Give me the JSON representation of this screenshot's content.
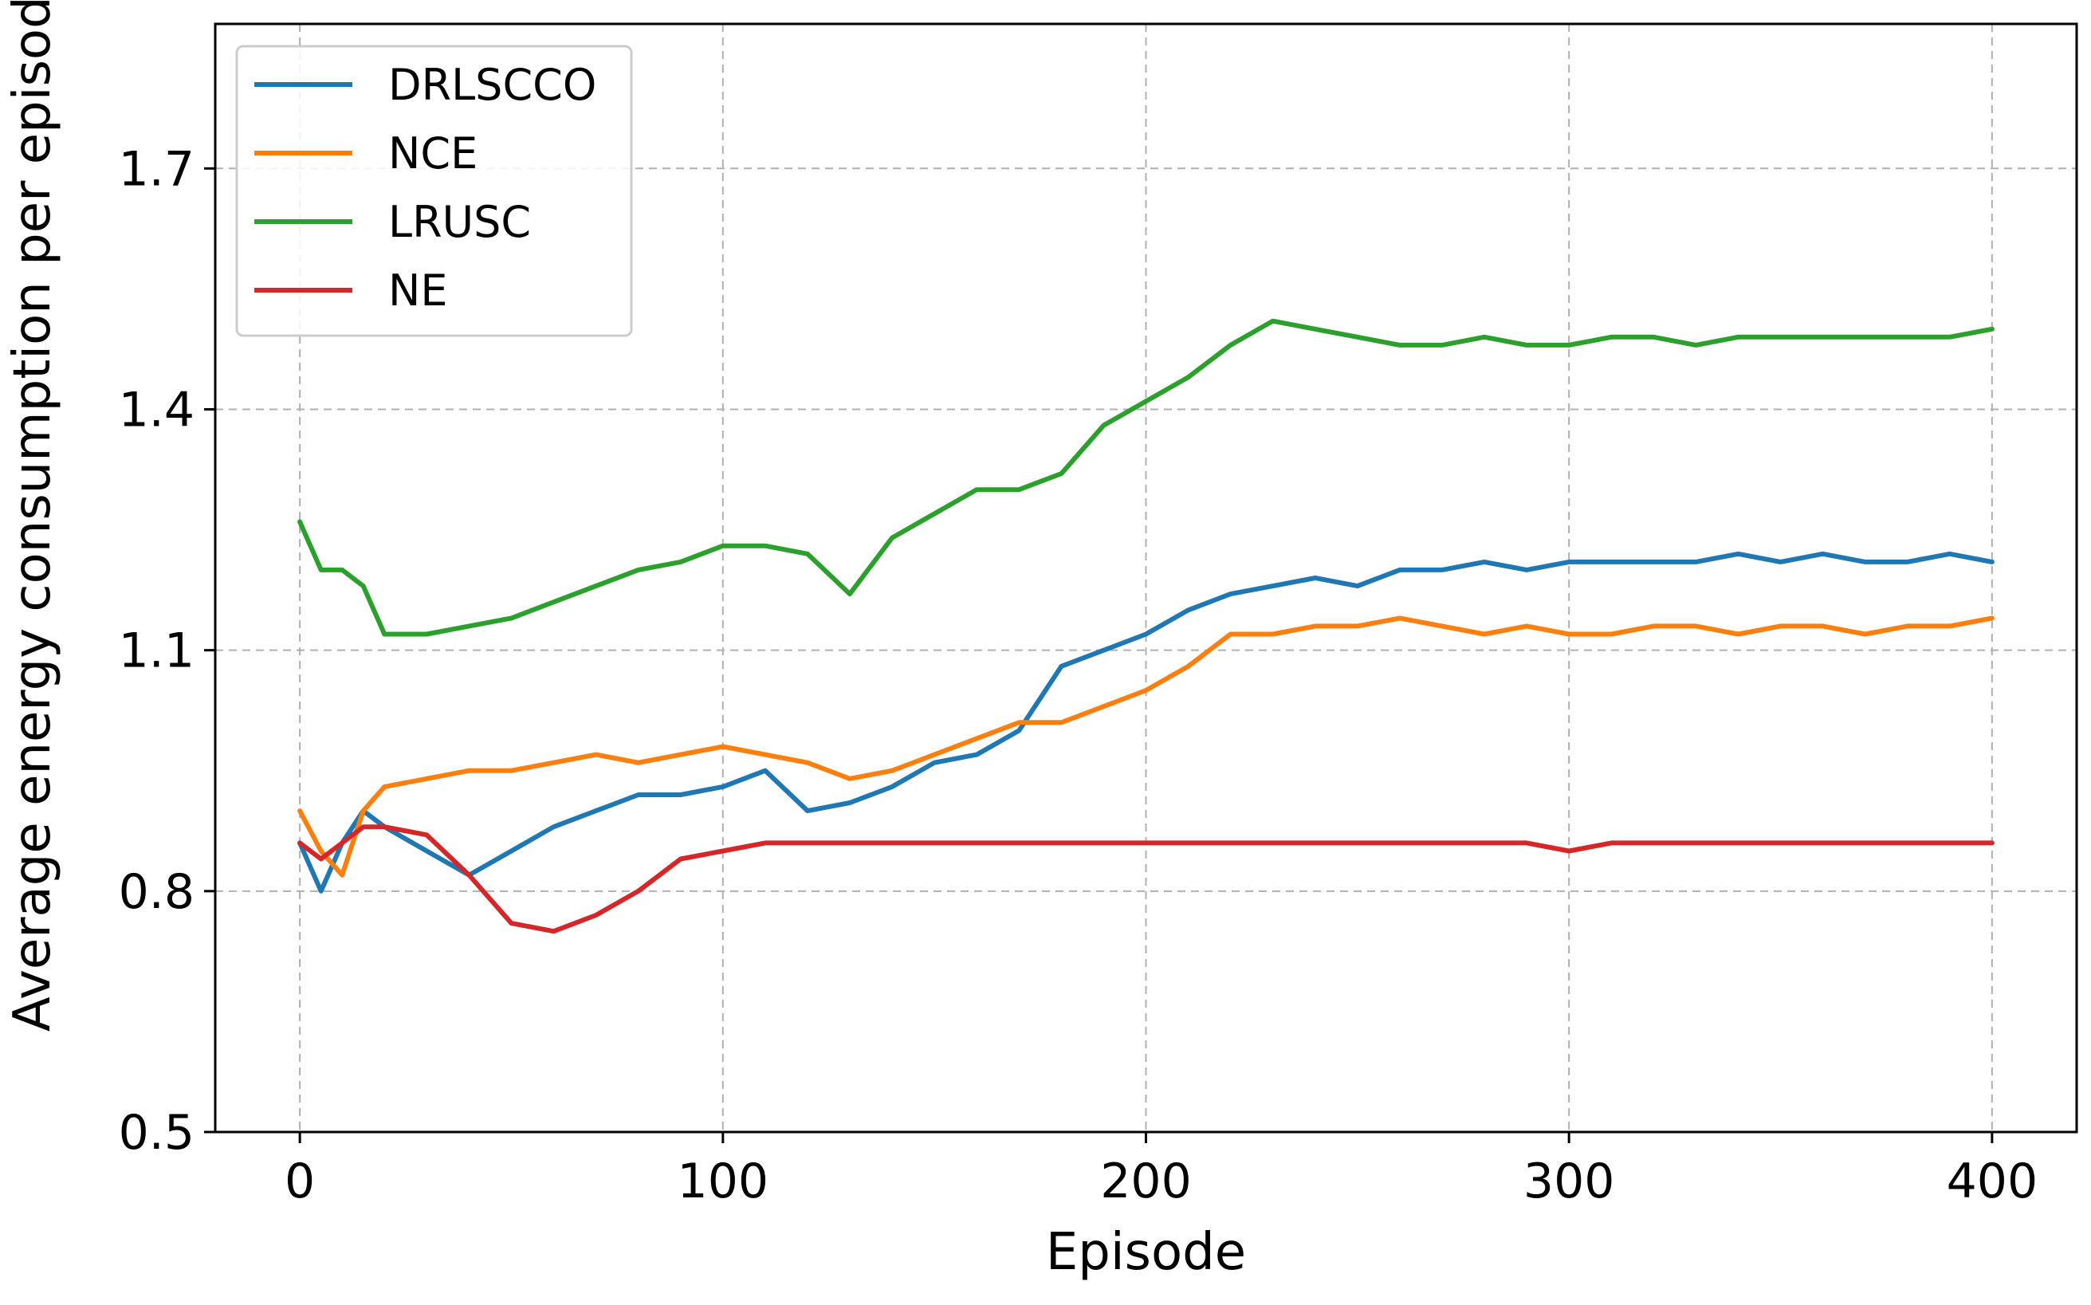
{
  "chart_data": {
    "type": "line",
    "title": "",
    "xlabel": "Episode",
    "ylabel": "Average energy consumption per episode",
    "xlim": [
      -20,
      420
    ],
    "ylim": [
      0.5,
      1.88
    ],
    "xticks": [
      0,
      100,
      200,
      300,
      400
    ],
    "yticks": [
      0.5,
      0.8,
      1.1,
      1.4,
      1.7
    ],
    "ytick_labels": [
      "0.5",
      "0.8",
      "1.1",
      "1.4",
      "1.7"
    ],
    "grid": true,
    "legend_position": "top-left",
    "series": [
      {
        "name": "DRLSCCO",
        "color": "#1f77b4",
        "x": [
          0,
          5,
          10,
          15,
          20,
          30,
          40,
          50,
          60,
          70,
          80,
          90,
          100,
          110,
          120,
          130,
          140,
          150,
          160,
          170,
          180,
          190,
          200,
          210,
          220,
          230,
          240,
          250,
          260,
          270,
          280,
          290,
          300,
          310,
          320,
          330,
          340,
          350,
          360,
          370,
          380,
          390,
          400
        ],
        "y": [
          0.86,
          0.8,
          0.86,
          0.9,
          0.88,
          0.85,
          0.82,
          0.85,
          0.88,
          0.9,
          0.92,
          0.92,
          0.93,
          0.95,
          0.9,
          0.91,
          0.93,
          0.96,
          0.97,
          1.0,
          1.08,
          1.1,
          1.12,
          1.15,
          1.17,
          1.18,
          1.19,
          1.18,
          1.2,
          1.2,
          1.21,
          1.2,
          1.21,
          1.21,
          1.21,
          1.21,
          1.22,
          1.21,
          1.22,
          1.21,
          1.21,
          1.22,
          1.21
        ]
      },
      {
        "name": "NCE",
        "color": "#ff7f0e",
        "x": [
          0,
          5,
          10,
          15,
          20,
          30,
          40,
          50,
          60,
          70,
          80,
          90,
          100,
          110,
          120,
          130,
          140,
          150,
          160,
          170,
          180,
          190,
          200,
          210,
          220,
          230,
          240,
          250,
          260,
          270,
          280,
          290,
          300,
          310,
          320,
          330,
          340,
          350,
          360,
          370,
          380,
          390,
          400
        ],
        "y": [
          0.9,
          0.85,
          0.82,
          0.9,
          0.93,
          0.94,
          0.95,
          0.95,
          0.96,
          0.97,
          0.96,
          0.97,
          0.98,
          0.97,
          0.96,
          0.94,
          0.95,
          0.97,
          0.99,
          1.01,
          1.01,
          1.03,
          1.05,
          1.08,
          1.12,
          1.12,
          1.13,
          1.13,
          1.14,
          1.13,
          1.12,
          1.13,
          1.12,
          1.12,
          1.13,
          1.13,
          1.12,
          1.13,
          1.13,
          1.12,
          1.13,
          1.13,
          1.14
        ]
      },
      {
        "name": "LRUSC",
        "color": "#2ca02c",
        "x": [
          0,
          5,
          10,
          15,
          20,
          30,
          40,
          50,
          60,
          70,
          80,
          90,
          100,
          110,
          120,
          130,
          140,
          150,
          160,
          170,
          180,
          190,
          200,
          210,
          220,
          230,
          240,
          250,
          260,
          270,
          280,
          290,
          300,
          310,
          320,
          330,
          340,
          350,
          360,
          370,
          380,
          390,
          400
        ],
        "y": [
          1.26,
          1.2,
          1.2,
          1.18,
          1.12,
          1.12,
          1.13,
          1.14,
          1.16,
          1.18,
          1.2,
          1.21,
          1.23,
          1.23,
          1.22,
          1.17,
          1.24,
          1.27,
          1.3,
          1.3,
          1.32,
          1.38,
          1.41,
          1.44,
          1.48,
          1.51,
          1.5,
          1.49,
          1.48,
          1.48,
          1.49,
          1.48,
          1.48,
          1.49,
          1.49,
          1.48,
          1.49,
          1.49,
          1.49,
          1.49,
          1.49,
          1.49,
          1.5
        ]
      },
      {
        "name": "NE",
        "color": "#d62728",
        "x": [
          0,
          5,
          10,
          15,
          20,
          30,
          40,
          50,
          60,
          70,
          80,
          90,
          100,
          110,
          120,
          130,
          140,
          150,
          160,
          170,
          180,
          190,
          200,
          210,
          220,
          230,
          240,
          250,
          260,
          270,
          280,
          290,
          300,
          310,
          320,
          330,
          340,
          350,
          360,
          370,
          380,
          390,
          400
        ],
        "y": [
          0.86,
          0.84,
          0.86,
          0.88,
          0.88,
          0.87,
          0.82,
          0.76,
          0.75,
          0.77,
          0.8,
          0.84,
          0.85,
          0.86,
          0.86,
          0.86,
          0.86,
          0.86,
          0.86,
          0.86,
          0.86,
          0.86,
          0.86,
          0.86,
          0.86,
          0.86,
          0.86,
          0.86,
          0.86,
          0.86,
          0.86,
          0.86,
          0.85,
          0.86,
          0.86,
          0.86,
          0.86,
          0.86,
          0.86,
          0.86,
          0.86,
          0.86,
          0.86
        ]
      }
    ]
  }
}
